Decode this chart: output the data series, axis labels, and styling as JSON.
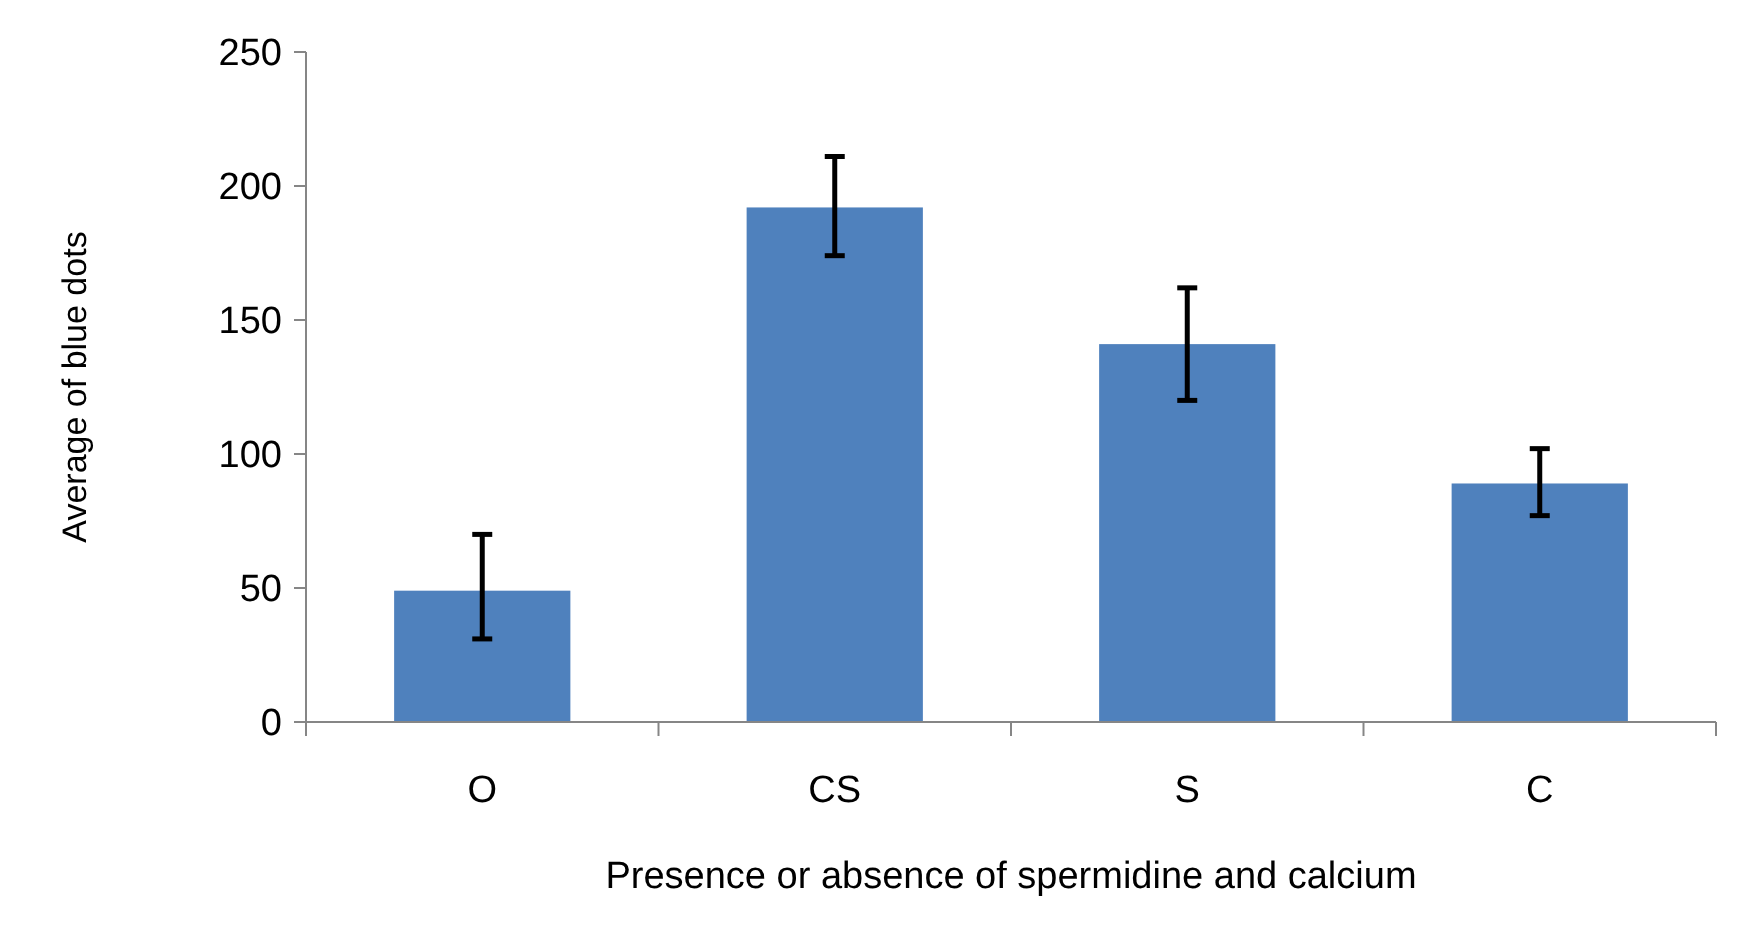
{
  "chart_data": {
    "type": "bar",
    "xlabel": "Presence or absence  of spermidine and calcium",
    "ylabel": "Average of blue dots",
    "categories": [
      "O",
      "CS",
      "S",
      "C"
    ],
    "values": [
      49,
      192,
      141,
      89
    ],
    "errors": [
      [
        31,
        70
      ],
      [
        174,
        211
      ],
      [
        120,
        162
      ],
      [
        77,
        102
      ]
    ],
    "color": "#4f81bd",
    "ylim": [
      0,
      250
    ],
    "yticks": [
      0,
      50,
      100,
      150,
      200,
      250
    ],
    "grid": false
  }
}
